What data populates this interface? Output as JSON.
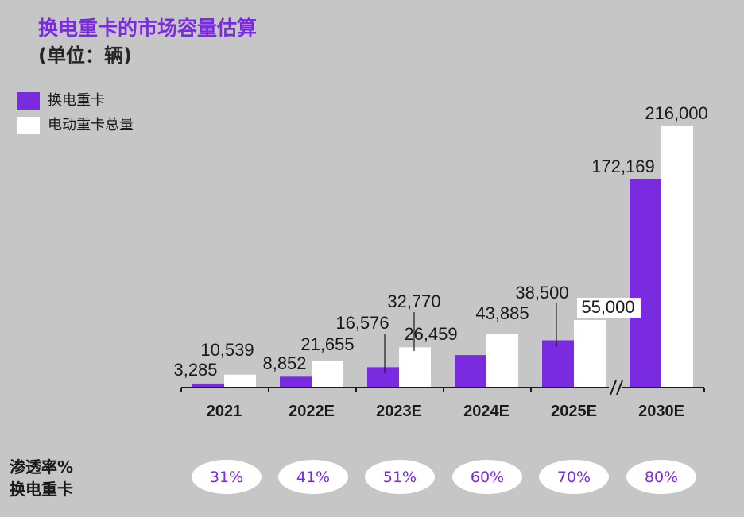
{
  "title": "换电重卡的市场容量估算",
  "subtitle": "(单位：辆)",
  "legend": {
    "swap": "换电重卡",
    "total": "电动重卡总量"
  },
  "penetration": {
    "label_line1": "渗透率%",
    "label_line2": "换电重卡",
    "values": [
      "31%",
      "41%",
      "51%",
      "60%",
      "70%",
      "80%"
    ]
  },
  "colors": {
    "swap": "#7a2be0",
    "total": "#ffffff",
    "background": "#c6c6c6"
  },
  "chart_data": {
    "type": "bar",
    "title": "换电重卡的市场容量估算",
    "ylabel": "(单位：辆)",
    "categories": [
      "2021",
      "2022E",
      "2023E",
      "2024E",
      "2025E",
      "2030E"
    ],
    "series": [
      {
        "name": "换电重卡",
        "values": [
          3285,
          8852,
          16576,
          26459,
          38500,
          172169
        ],
        "labels": [
          "3,285",
          "8,852",
          "16,576",
          "26,459",
          "38,500",
          "172,169"
        ]
      },
      {
        "name": "电动重卡总量",
        "values": [
          10539,
          21655,
          32770,
          43885,
          55000,
          216000
        ],
        "labels": [
          "10,539",
          "21,655",
          "32,770",
          "43,885",
          "55,000",
          "216,000"
        ]
      }
    ],
    "axis_break_before": "2030E",
    "grid": false
  }
}
